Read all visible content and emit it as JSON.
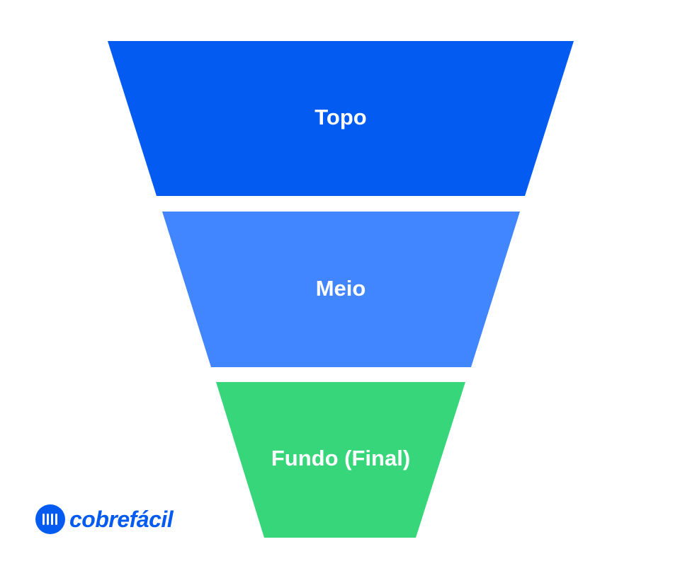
{
  "funnel": {
    "stages": [
      {
        "label": "Topo",
        "color": "#035BF2"
      },
      {
        "label": "Meio",
        "color": "#4185FF"
      },
      {
        "label": "Fundo (Final)",
        "color": "#37D67A"
      }
    ]
  },
  "brand": {
    "name": "cobrefácil",
    "color": "#035BF2",
    "icon": "barcode-circle-icon"
  }
}
